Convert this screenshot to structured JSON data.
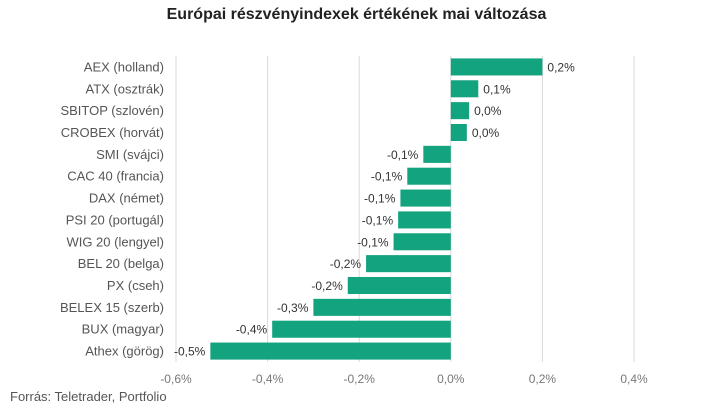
{
  "chart_data": {
    "type": "bar",
    "orientation": "horizontal",
    "title": "Európai részvényindexek értékének mai változása",
    "source": "Forrás: Teletrader, Portfolio",
    "categories": [
      "AEX (holland)",
      "ATX (osztrák)",
      "SBITOP (szlovén)",
      "CROBEX (horvát)",
      "SMI (svájci)",
      "CAC 40 (francia)",
      "DAX (német)",
      "PSI 20 (portugál)",
      "WIG 20 (lengyel)",
      "BEL 20 (belga)",
      "PX (cseh)",
      "BELEX 15 (szerb)",
      "BUX (magyar)",
      "Athex (görög)"
    ],
    "values": [
      0.2,
      0.06,
      0.04,
      0.035,
      -0.06,
      -0.095,
      -0.11,
      -0.115,
      -0.125,
      -0.185,
      -0.225,
      -0.3,
      -0.39,
      -0.525
    ],
    "value_labels": [
      "0,2%",
      "0,1%",
      "0,0%",
      "0,0%",
      "-0,1%",
      "-0,1%",
      "-0,1%",
      "-0,1%",
      "-0,1%",
      "-0,2%",
      "-0,2%",
      "-0,3%",
      "-0,4%",
      "-0,5%"
    ],
    "xlim": [
      -0.6,
      0.4
    ],
    "xticks": [
      -0.6,
      -0.4,
      -0.2,
      0.0,
      0.2,
      0.4
    ],
    "xtick_labels": [
      "-0,6%",
      "-0,4%",
      "-0,2%",
      "0,0%",
      "0,2%",
      "0,4%"
    ],
    "grid": true,
    "bar_color": "#14a37f",
    "grid_color": "#d9d9d9"
  }
}
